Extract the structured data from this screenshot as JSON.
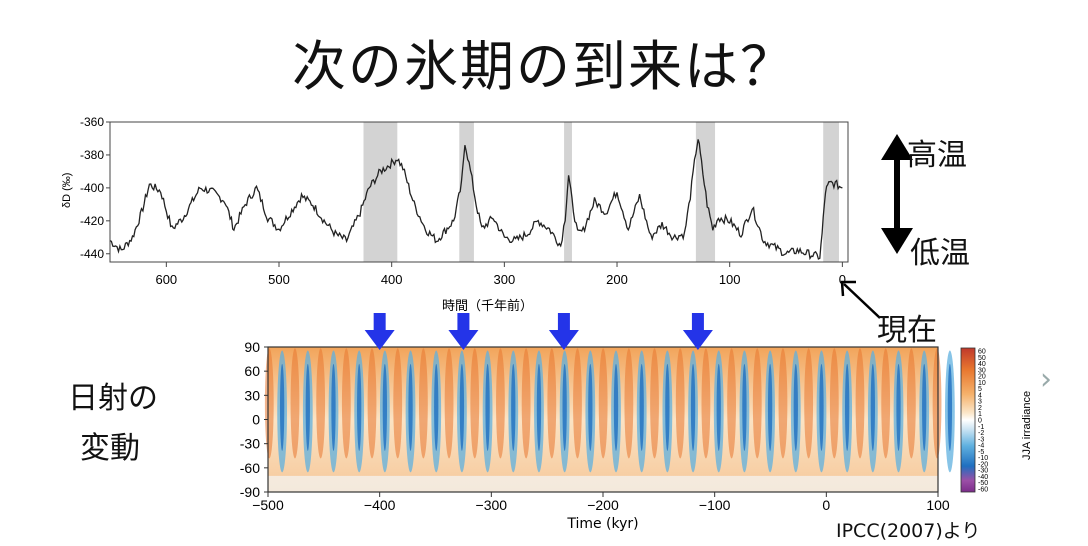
{
  "slide": {
    "title": "次の氷期の到来は？",
    "label_warm": "高温",
    "label_cold": "低温",
    "label_present": "現在",
    "insolation_label_line1": "日射の",
    "insolation_label_line2": "変動",
    "source": "IPCC(2007)より"
  },
  "colors": {
    "line": "#222222",
    "shade": "#d3d3d3",
    "arrow_blue": "#2434e8"
  },
  "chart_data": [
    {
      "type": "line",
      "title": "",
      "ylabel": "δD (‰)",
      "xlabel": "時間（千年前）",
      "xlim": [
        650,
        -5
      ],
      "ylim": [
        -445,
        -360
      ],
      "x_ticks": [
        600,
        500,
        400,
        300,
        200,
        100,
        0
      ],
      "y_ticks": [
        -360,
        -380,
        -400,
        -420,
        -440
      ],
      "interglacial_shading": [
        [
          425,
          395
        ],
        [
          340,
          327
        ],
        [
          247,
          240
        ],
        [
          130,
          113
        ],
        [
          17,
          3
        ]
      ],
      "series": [
        {
          "x": [
            650,
            640,
            630,
            622,
            615,
            605,
            595,
            585,
            570,
            560,
            548,
            540,
            530,
            520,
            510,
            500,
            490,
            480,
            470,
            460,
            450,
            440,
            428,
            420,
            410,
            400,
            395,
            390,
            380,
            370,
            360,
            345,
            338,
            335,
            330,
            325,
            320,
            310,
            300,
            290,
            280,
            270,
            260,
            250,
            246,
            243,
            240,
            235,
            230,
            220,
            210,
            200,
            190,
            180,
            170,
            160,
            150,
            140,
            135,
            130,
            128,
            125,
            120,
            115,
            110,
            100,
            90,
            80,
            70,
            60,
            50,
            40,
            30,
            20,
            18,
            15,
            12,
            10,
            5,
            0
          ],
          "y": [
            -432,
            -438,
            -430,
            -415,
            -398,
            -402,
            -425,
            -418,
            -400,
            -402,
            -408,
            -425,
            -410,
            -400,
            -418,
            -425,
            -415,
            -405,
            -410,
            -420,
            -428,
            -432,
            -415,
            -400,
            -390,
            -385,
            -382,
            -388,
            -410,
            -425,
            -432,
            -420,
            -398,
            -372,
            -390,
            -410,
            -425,
            -418,
            -430,
            -432,
            -428,
            -420,
            -425,
            -435,
            -418,
            -392,
            -408,
            -428,
            -426,
            -408,
            -415,
            -402,
            -425,
            -405,
            -430,
            -422,
            -430,
            -428,
            -405,
            -378,
            -370,
            -385,
            -410,
            -425,
            -418,
            -420,
            -428,
            -412,
            -432,
            -436,
            -440,
            -438,
            -440,
            -442,
            -428,
            -402,
            -398,
            -397,
            -398,
            -400
          ]
        }
      ]
    },
    {
      "type": "heatmap",
      "title": "",
      "xlabel": "Time (kyr)",
      "colorbar_label": "JJA irradiance",
      "xlim": [
        -500,
        100
      ],
      "ylim": [
        -90,
        90
      ],
      "x_ticks": [
        -500,
        -400,
        -300,
        -200,
        -100,
        0,
        100
      ],
      "y_ticks": [
        90,
        60,
        30,
        0,
        -30,
        -60,
        -90
      ],
      "colorbar_ticks": [
        "60",
        "50",
        "40",
        "30",
        "20",
        "10",
        "5",
        "4",
        "3",
        "2",
        "1",
        "0",
        "-1",
        "-2",
        "-3",
        "-4",
        "-5",
        "-10",
        "-20",
        "-30",
        "-40",
        "-50",
        "-60"
      ],
      "highlight_arrows_kyr": [
        -400,
        -325,
        -235,
        -115
      ]
    }
  ]
}
